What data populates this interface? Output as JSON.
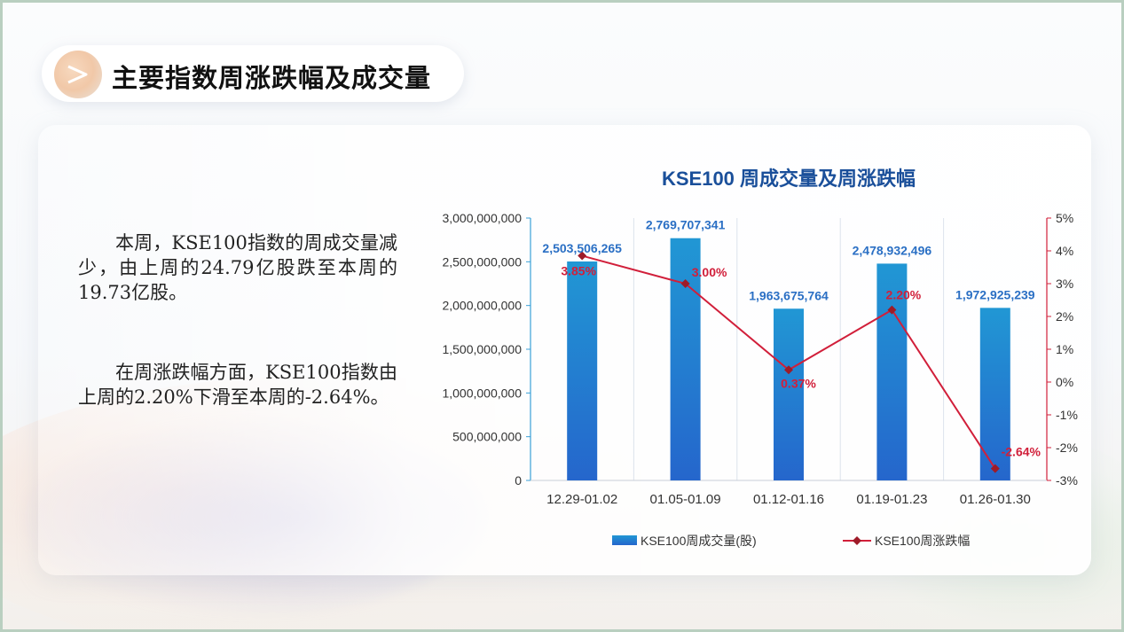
{
  "slide": {
    "title": "主要指数周涨跌幅及成交量",
    "icon": "chevron-right-icon",
    "paragraph1": "本周，KSE100指数的周成交量减少，由上周的24.79亿股跌至本周的19.73亿股。",
    "paragraph2": "在周涨跌幅方面，KSE100指数由上周的2.20%下滑至本周的-2.64%。"
  },
  "chart_data": {
    "type": "bar",
    "title": "KSE100 周成交量及周涨跌幅",
    "categories": [
      "12.29-01.02",
      "01.05-01.09",
      "01.12-01.16",
      "01.19-01.23",
      "01.26-01.30"
    ],
    "ylim": [
      0,
      3000000000
    ],
    "y_ticks": [
      "0",
      "500,000,000",
      "1,000,000,000",
      "1,500,000,000",
      "2,000,000,000",
      "2,500,000,000",
      "3,000,000,000"
    ],
    "y2lim": [
      -3,
      5
    ],
    "y2_ticks": [
      "-3%",
      "-2%",
      "-1%",
      "0%",
      "1%",
      "2%",
      "3%",
      "4%",
      "5%"
    ],
    "grid": "vertical",
    "legend_position": "bottom",
    "series": [
      {
        "name": "KSE100周成交量(股)",
        "type": "bar",
        "axis": "left",
        "values": [
          2503506265,
          2769707341,
          1963675764,
          2478932496,
          1972925239
        ],
        "labels": [
          "2,503,506,265",
          "2,769,707,341",
          "1,963,675,764",
          "2,478,932,496",
          "1,972,925,239"
        ],
        "color": "#2a86d6"
      },
      {
        "name": "KSE100周涨跌幅",
        "type": "line",
        "axis": "right",
        "values": [
          3.85,
          3.0,
          0.37,
          2.2,
          -2.64
        ],
        "labels": [
          "3.85%",
          "3.00%",
          "0.37%",
          "2.20%",
          "-2.64%"
        ],
        "color": "#d11f3a",
        "marker_color": "#9e1b28"
      }
    ],
    "colors": {
      "title": "#1a4f9a",
      "bar_label": "#2a6fc4",
      "line_label": "#d11f3a",
      "left_axis": "#3aa0d8",
      "right_axis": "#d11f3a",
      "text": "#333333"
    }
  }
}
